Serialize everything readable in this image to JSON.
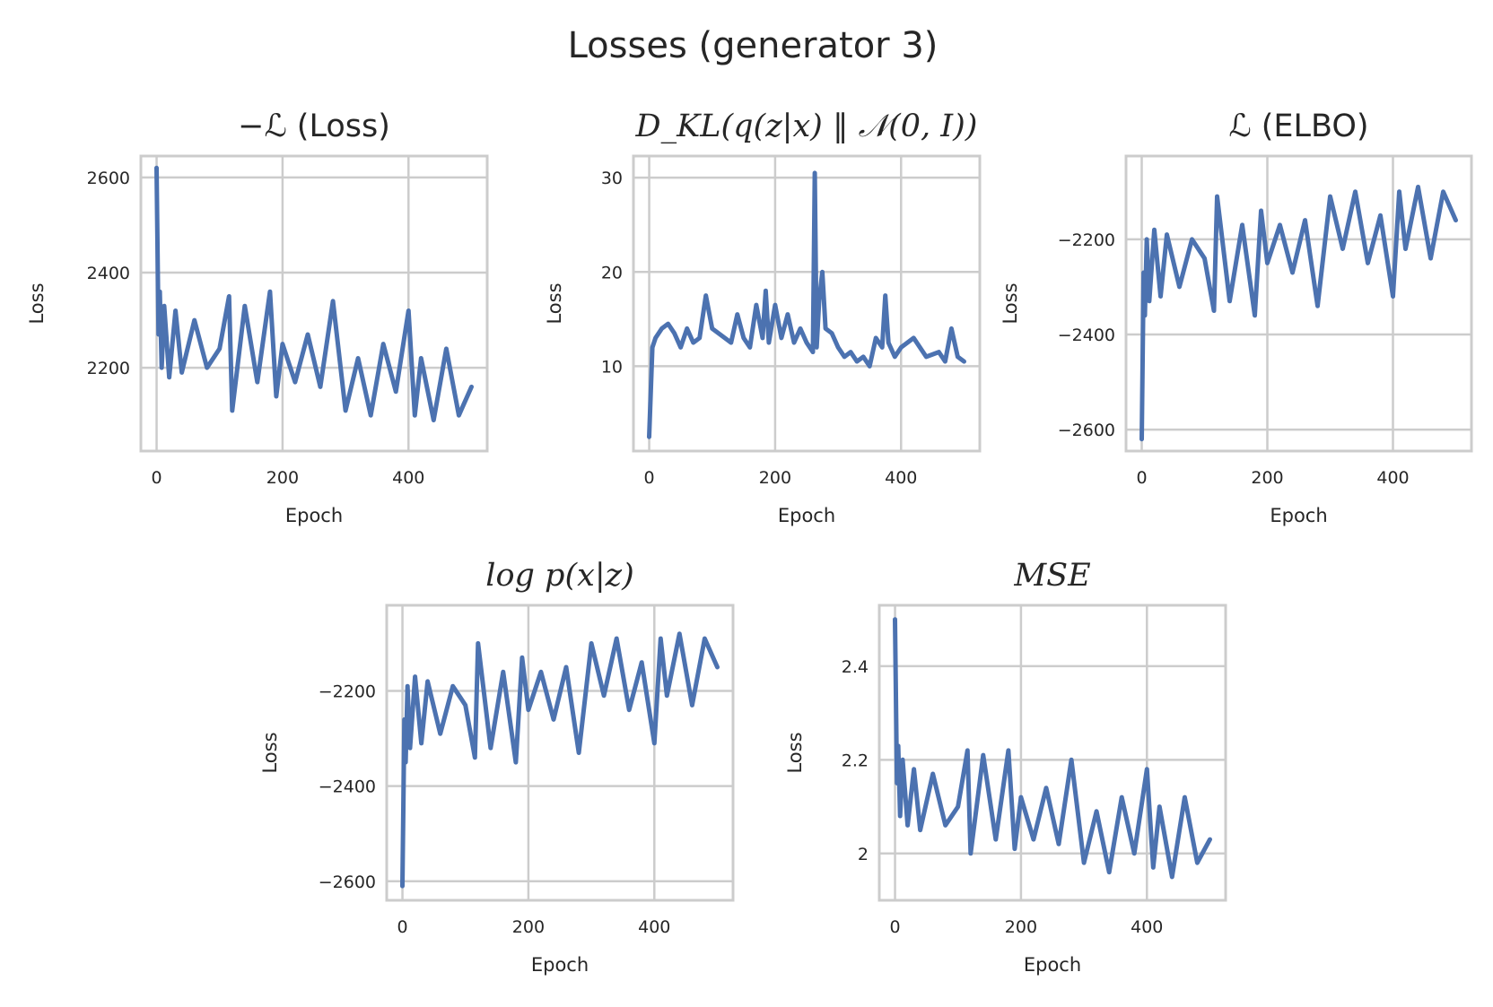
{
  "figure": {
    "title": "Losses (generator 3)"
  },
  "chart_data": [
    {
      "type": "line",
      "title": "−ℒ (Loss)",
      "xlabel": "Epoch",
      "ylabel": "Loss",
      "xticks": [
        0,
        200,
        400
      ],
      "yticks": [
        2200,
        2400,
        2600
      ],
      "xlim": [
        -25,
        525
      ],
      "ylim": [
        2025,
        2645
      ],
      "grid": true,
      "color": "#4c72b0",
      "series": [
        {
          "x": [
            0,
            3,
            5,
            8,
            12,
            20,
            30,
            40,
            60,
            80,
            100,
            115,
            120,
            140,
            160,
            180,
            190,
            200,
            220,
            240,
            260,
            280,
            300,
            320,
            340,
            360,
            380,
            400,
            410,
            420,
            440,
            460,
            480,
            500
          ],
          "y": [
            2620,
            2270,
            2360,
            2200,
            2330,
            2180,
            2320,
            2190,
            2300,
            2200,
            2240,
            2350,
            2110,
            2330,
            2170,
            2360,
            2140,
            2250,
            2170,
            2270,
            2160,
            2340,
            2110,
            2220,
            2100,
            2250,
            2150,
            2320,
            2100,
            2220,
            2090,
            2240,
            2100,
            2160
          ]
        }
      ]
    },
    {
      "type": "line",
      "title": "D_KL(q(z|x) ‖ 𝒩(0, I))",
      "xlabel": "Epoch",
      "ylabel": "Loss",
      "xticks": [
        0,
        200,
        400
      ],
      "yticks": [
        10,
        20,
        30
      ],
      "xlim": [
        -25,
        525
      ],
      "ylim": [
        1,
        32.3
      ],
      "grid": true,
      "color": "#4c72b0",
      "series": [
        {
          "x": [
            0,
            5,
            10,
            20,
            30,
            40,
            50,
            60,
            70,
            80,
            90,
            100,
            120,
            130,
            140,
            150,
            160,
            170,
            180,
            185,
            190,
            200,
            210,
            220,
            230,
            240,
            250,
            260,
            263,
            266,
            270,
            275,
            280,
            290,
            300,
            310,
            320,
            330,
            340,
            350,
            360,
            370,
            375,
            380,
            390,
            400,
            420,
            440,
            460,
            470,
            480,
            490,
            500
          ],
          "y": [
            2.5,
            12,
            13,
            14,
            14.5,
            13.5,
            12,
            14,
            12.5,
            13,
            17.5,
            14,
            13,
            12.5,
            15.5,
            13,
            12,
            16.5,
            13,
            18,
            12.5,
            16.5,
            13,
            15.5,
            12.5,
            14,
            12.5,
            11.5,
            30.5,
            12,
            17,
            20,
            14,
            13.5,
            12,
            11,
            11.5,
            10.5,
            11,
            10,
            13,
            12,
            17.5,
            12.5,
            11,
            12,
            13,
            11,
            11.5,
            10.5,
            14,
            11,
            10.5
          ]
        }
      ]
    },
    {
      "type": "line",
      "title": "ℒ (ELBO)",
      "xlabel": "Epoch",
      "ylabel": "Loss",
      "xticks": [
        0,
        200,
        400
      ],
      "yticks": [
        -2200,
        -2400,
        -2600
      ],
      "xlim": [
        -25,
        525
      ],
      "ylim": [
        -2645,
        -2025
      ],
      "grid": true,
      "color": "#4c72b0",
      "series": [
        {
          "x": [
            0,
            3,
            5,
            8,
            12,
            20,
            30,
            40,
            60,
            80,
            100,
            115,
            120,
            140,
            160,
            180,
            190,
            200,
            220,
            240,
            260,
            280,
            300,
            320,
            340,
            360,
            380,
            400,
            410,
            420,
            440,
            460,
            480,
            500
          ],
          "y": [
            -2620,
            -2270,
            -2360,
            -2200,
            -2330,
            -2180,
            -2320,
            -2190,
            -2300,
            -2200,
            -2240,
            -2350,
            -2110,
            -2330,
            -2170,
            -2360,
            -2140,
            -2250,
            -2170,
            -2270,
            -2160,
            -2340,
            -2110,
            -2220,
            -2100,
            -2250,
            -2150,
            -2320,
            -2100,
            -2220,
            -2090,
            -2240,
            -2100,
            -2160
          ]
        }
      ]
    },
    {
      "type": "line",
      "title": "log p(x|z)",
      "xlabel": "Epoch",
      "ylabel": "Loss",
      "xticks": [
        0,
        200,
        400
      ],
      "yticks": [
        -2200,
        -2400,
        -2600
      ],
      "xlim": [
        -25,
        525
      ],
      "ylim": [
        -2640,
        -2020
      ],
      "grid": true,
      "color": "#4c72b0",
      "series": [
        {
          "x": [
            0,
            3,
            5,
            8,
            12,
            20,
            30,
            40,
            60,
            80,
            100,
            115,
            120,
            140,
            160,
            180,
            190,
            200,
            220,
            240,
            260,
            280,
            300,
            320,
            340,
            360,
            380,
            400,
            410,
            420,
            440,
            460,
            480,
            500
          ],
          "y": [
            -2610,
            -2260,
            -2350,
            -2190,
            -2320,
            -2170,
            -2310,
            -2180,
            -2290,
            -2190,
            -2230,
            -2340,
            -2100,
            -2320,
            -2160,
            -2350,
            -2130,
            -2240,
            -2160,
            -2260,
            -2150,
            -2330,
            -2100,
            -2210,
            -2090,
            -2240,
            -2140,
            -2310,
            -2090,
            -2210,
            -2080,
            -2230,
            -2090,
            -2150
          ]
        }
      ]
    },
    {
      "type": "line",
      "title": "MSE",
      "xlabel": "Epoch",
      "ylabel": "Loss",
      "xticks": [
        0,
        200,
        400
      ],
      "yticks": [
        2.0,
        2.2,
        2.4
      ],
      "xlim": [
        -25,
        525
      ],
      "ylim": [
        1.9,
        2.53
      ],
      "grid": true,
      "color": "#4c72b0",
      "series": [
        {
          "x": [
            0,
            3,
            5,
            8,
            12,
            20,
            30,
            40,
            60,
            80,
            100,
            115,
            120,
            140,
            160,
            180,
            190,
            200,
            220,
            240,
            260,
            280,
            300,
            320,
            340,
            360,
            380,
            400,
            410,
            420,
            440,
            460,
            480,
            500
          ],
          "y": [
            2.5,
            2.15,
            2.23,
            2.08,
            2.2,
            2.06,
            2.18,
            2.05,
            2.17,
            2.06,
            2.1,
            2.22,
            2.0,
            2.21,
            2.03,
            2.22,
            2.01,
            2.12,
            2.03,
            2.14,
            2.02,
            2.2,
            1.98,
            2.09,
            1.96,
            2.12,
            2.0,
            2.18,
            1.97,
            2.1,
            1.95,
            2.12,
            1.98,
            2.03
          ]
        }
      ]
    }
  ]
}
